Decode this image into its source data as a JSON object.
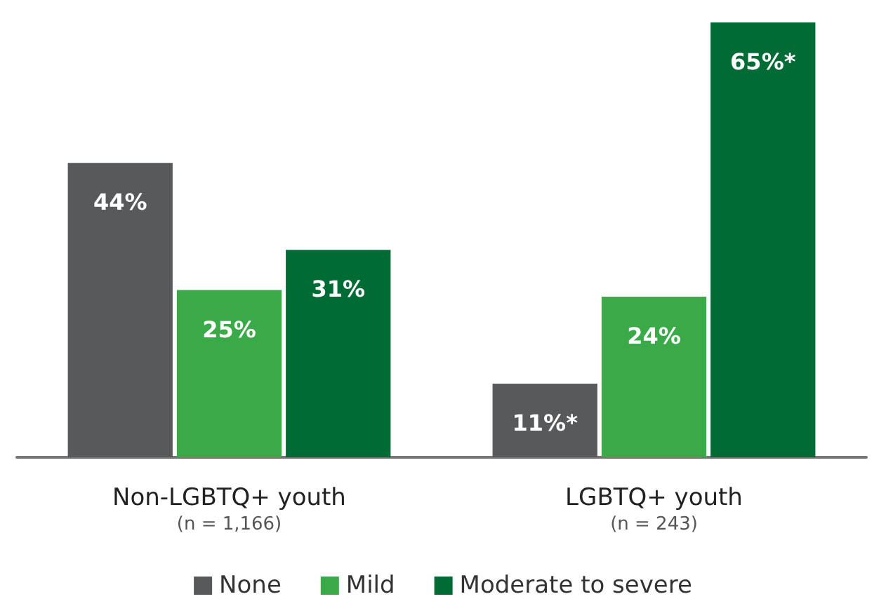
{
  "chart_data": {
    "type": "bar",
    "categories": [
      "Non-LGBTQ+ youth\n(n = 1,166)",
      "LGBTQ+ youth\n(n = 243)"
    ],
    "series": [
      {
        "name": "None",
        "color": "#58595b",
        "values": [
          44,
          11
        ],
        "value_labels": [
          "44%",
          "11%*"
        ]
      },
      {
        "name": "Mild",
        "color": "#3aaa49",
        "values": [
          25,
          24
        ],
        "value_labels": [
          "25%",
          "24%"
        ]
      },
      {
        "name": "Moderate to severe",
        "color": "#006b35",
        "values": [
          31,
          65
        ],
        "value_labels": [
          "31%",
          "65%*"
        ]
      }
    ],
    "legend": "bottom"
  }
}
